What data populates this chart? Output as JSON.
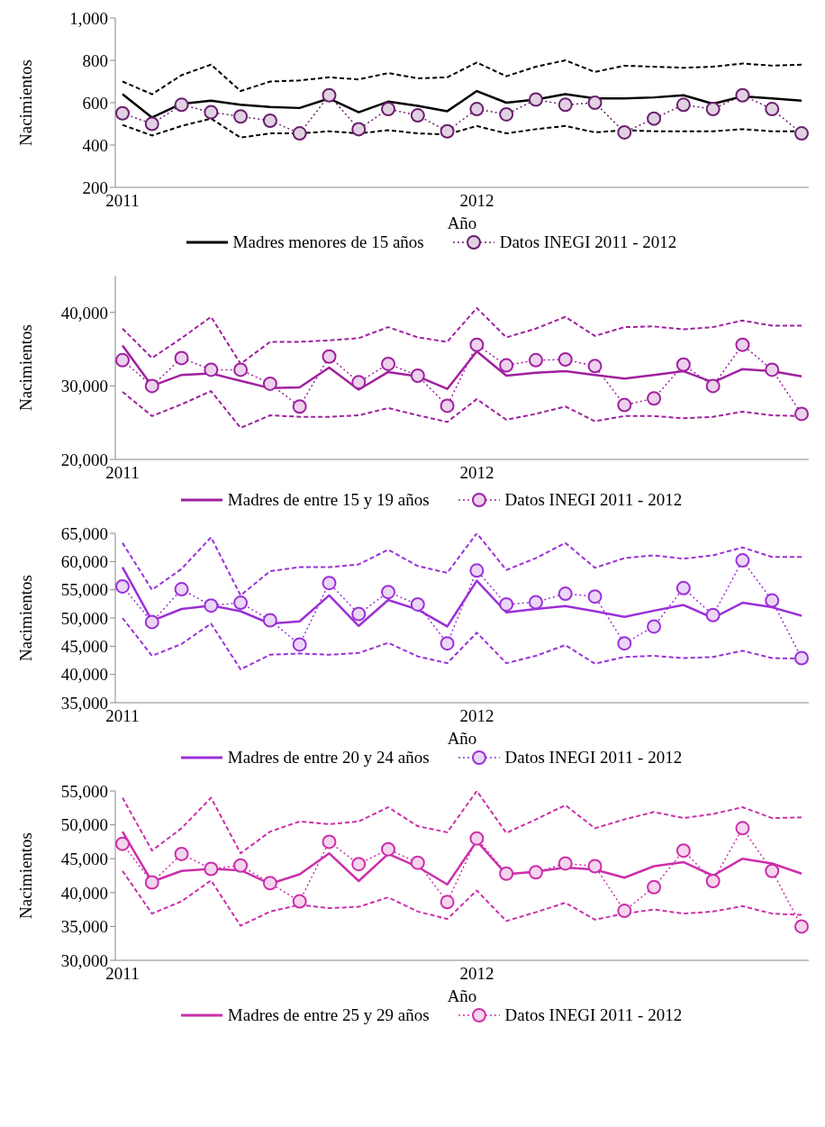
{
  "chart_data": [
    {
      "type": "line",
      "ylabel": "Nacimientos",
      "xlabel": "Año",
      "legend": "bottom",
      "categories": [
        "2011",
        null,
        null,
        null,
        null,
        null,
        null,
        null,
        null,
        null,
        null,
        null,
        "2012",
        null,
        null,
        null,
        null,
        null,
        null,
        null,
        null,
        null,
        null,
        null
      ],
      "ylim": [
        200,
        1000
      ],
      "yticks": [
        {
          "value": 200,
          "label": "200"
        },
        {
          "value": 400,
          "label": "400"
        },
        {
          "value": 600,
          "label": "600"
        },
        {
          "value": 800,
          "label": "800"
        },
        {
          "value": 1000,
          "label": "1,000"
        }
      ],
      "series": [
        {
          "name": "Madres menores de 15 años",
          "color": "#000000",
          "line_style": "solid",
          "marker": "none",
          "values": [
            640,
            530,
            595,
            610,
            590,
            580,
            575,
            620,
            555,
            605,
            585,
            560,
            655,
            600,
            615,
            640,
            620,
            620,
            625,
            635,
            595,
            630,
            620,
            610
          ]
        },
        {
          "color": "#000000",
          "line_style": "dashed",
          "marker": "none",
          "values": [
            700,
            640,
            730,
            780,
            655,
            700,
            705,
            720,
            710,
            740,
            715,
            720,
            790,
            725,
            770,
            800,
            745,
            775,
            770,
            765,
            770,
            785,
            775,
            780
          ]
        },
        {
          "color": "#000000",
          "line_style": "dashed",
          "marker": "none",
          "values": [
            495,
            445,
            490,
            525,
            435,
            455,
            455,
            465,
            455,
            470,
            455,
            450,
            490,
            455,
            475,
            490,
            460,
            470,
            465,
            465,
            465,
            475,
            465,
            465
          ]
        },
        {
          "name": "Datos INEGI 2011 - 2012",
          "color": "#6b1f6e",
          "line_style": "dotted",
          "marker": "circle",
          "values": [
            550,
            500,
            590,
            555,
            535,
            515,
            455,
            635,
            475,
            570,
            540,
            465,
            570,
            545,
            615,
            590,
            600,
            460,
            525,
            590,
            570,
            635,
            570,
            455
          ]
        }
      ]
    },
    {
      "type": "line",
      "ylabel": "Nacimientos",
      "legend": "bottom",
      "categories": [
        "2011",
        null,
        null,
        null,
        null,
        null,
        null,
        null,
        null,
        null,
        null,
        null,
        "2012",
        null,
        null,
        null,
        null,
        null,
        null,
        null,
        null,
        null,
        null,
        null
      ],
      "ylim": [
        20000,
        45000
      ],
      "yticks": [
        {
          "value": 20000,
          "label": "20,000"
        },
        {
          "value": 30000,
          "label": "30,000"
        },
        {
          "value": 40000,
          "label": "40,000"
        }
      ],
      "series": [
        {
          "name": "Madres de entre 15 y 19 años",
          "color": "#a020a0",
          "line_style": "solid",
          "marker": "none",
          "values": [
            35500,
            30000,
            31500,
            31700,
            30700,
            29700,
            29800,
            32500,
            29500,
            31900,
            31300,
            29600,
            34700,
            31400,
            31800,
            32000,
            31500,
            31000,
            31500,
            32000,
            30500,
            32300,
            32000,
            31300
          ]
        },
        {
          "color": "#a020a0",
          "line_style": "dashed",
          "marker": "none",
          "values": [
            37800,
            33800,
            36500,
            39400,
            33000,
            36000,
            36000,
            36200,
            36500,
            38000,
            36600,
            36000,
            40600,
            36600,
            37800,
            39400,
            36800,
            38000,
            38100,
            37700,
            38000,
            38900,
            38200,
            38200
          ]
        },
        {
          "color": "#a020a0",
          "line_style": "dashed",
          "marker": "none",
          "values": [
            29200,
            25900,
            27500,
            29300,
            24300,
            26000,
            25800,
            25800,
            26000,
            27000,
            26000,
            25100,
            28200,
            25400,
            26200,
            27200,
            25200,
            25900,
            25900,
            25600,
            25800,
            26500,
            26000,
            25900
          ]
        },
        {
          "name": "Datos INEGI 2011 - 2012",
          "color": "#a020a0",
          "line_style": "dotted",
          "marker": "circle",
          "values": [
            33500,
            30000,
            33800,
            32200,
            32200,
            30300,
            27200,
            34000,
            30500,
            33000,
            31400,
            27300,
            35600,
            32800,
            33500,
            33600,
            32700,
            27400,
            28300,
            32900,
            30000,
            35600,
            32200,
            26200
          ]
        }
      ]
    },
    {
      "type": "line",
      "ylabel": "Nacimientos",
      "xlabel": "Año",
      "legend": "bottom",
      "categories": [
        "2011",
        null,
        null,
        null,
        null,
        null,
        null,
        null,
        null,
        null,
        null,
        null,
        "2012",
        null,
        null,
        null,
        null,
        null,
        null,
        null,
        null,
        null,
        null,
        null
      ],
      "ylim": [
        35000,
        65000
      ],
      "yticks": [
        {
          "value": 35000,
          "label": "35,000"
        },
        {
          "value": 40000,
          "label": "40,000"
        },
        {
          "value": 45000,
          "label": "45,000"
        },
        {
          "value": 50000,
          "label": "50,000"
        },
        {
          "value": 55000,
          "label": "55,000"
        },
        {
          "value": 60000,
          "label": "60,000"
        },
        {
          "value": 65000,
          "label": "65,000"
        }
      ],
      "series": [
        {
          "name": "Madres de entre 20 y 24 años",
          "color": "#9b30d8",
          "line_style": "solid",
          "marker": "none",
          "values": [
            59000,
            49500,
            51600,
            52200,
            51200,
            49000,
            49400,
            54000,
            48600,
            53200,
            51500,
            48500,
            56600,
            51000,
            51600,
            52100,
            51200,
            50200,
            51300,
            52300,
            50000,
            52700,
            51900,
            50400
          ]
        },
        {
          "color": "#9b30d8",
          "line_style": "dashed",
          "marker": "none",
          "values": [
            63300,
            55000,
            58700,
            64300,
            54000,
            58300,
            59000,
            59000,
            59500,
            62100,
            59200,
            58000,
            65000,
            58500,
            60600,
            63300,
            58900,
            60600,
            61100,
            60500,
            61100,
            62500,
            60800,
            60800
          ]
        },
        {
          "color": "#9b30d8",
          "line_style": "dashed",
          "marker": "none",
          "values": [
            50000,
            43300,
            45400,
            49000,
            40900,
            43500,
            43700,
            43500,
            43800,
            45600,
            43200,
            42000,
            47400,
            42000,
            43300,
            45200,
            41900,
            43100,
            43300,
            42900,
            43100,
            44200,
            42900,
            42800
          ]
        },
        {
          "name": "Datos INEGI 2011 - 2012",
          "color": "#9b30d8",
          "line_style": "dotted",
          "marker": "circle",
          "values": [
            55600,
            49300,
            55100,
            52200,
            52700,
            49600,
            45300,
            56200,
            50700,
            54600,
            52400,
            45500,
            58400,
            52400,
            52800,
            54300,
            53800,
            45500,
            48500,
            55300,
            50500,
            60200,
            53100,
            42900
          ]
        }
      ]
    },
    {
      "type": "line",
      "ylabel": "Nacimientos",
      "xlabel": "Año",
      "legend": "bottom",
      "categories": [
        "2011",
        null,
        null,
        null,
        null,
        null,
        null,
        null,
        null,
        null,
        null,
        null,
        "2012",
        null,
        null,
        null,
        null,
        null,
        null,
        null,
        null,
        null,
        null,
        null
      ],
      "ylim": [
        30000,
        55000
      ],
      "yticks": [
        {
          "value": 30000,
          "label": "30,000"
        },
        {
          "value": 35000,
          "label": "35,000"
        },
        {
          "value": 40000,
          "label": "40,000"
        },
        {
          "value": 45000,
          "label": "45,000"
        },
        {
          "value": 50000,
          "label": "50,000"
        },
        {
          "value": 55000,
          "label": "55,000"
        }
      ],
      "series": [
        {
          "name": "Madres de entre 25 y 29 años",
          "color": "#cc2faa",
          "line_style": "solid",
          "marker": "none",
          "values": [
            49000,
            41600,
            43200,
            43500,
            43300,
            41300,
            42700,
            45800,
            41700,
            45700,
            43800,
            41200,
            47600,
            42700,
            43100,
            43700,
            43400,
            42200,
            43900,
            44500,
            42500,
            45000,
            44300,
            42800
          ]
        },
        {
          "color": "#cc2faa",
          "line_style": "dashed",
          "marker": "none",
          "values": [
            54000,
            46200,
            49500,
            54000,
            45800,
            49000,
            50500,
            50100,
            50500,
            52600,
            49800,
            48900,
            55000,
            48800,
            50800,
            52900,
            49500,
            50800,
            51900,
            51000,
            51600,
            52600,
            51000,
            51100
          ]
        },
        {
          "color": "#cc2faa",
          "line_style": "dashed",
          "marker": "none",
          "values": [
            43200,
            36900,
            38700,
            41800,
            35100,
            37200,
            38200,
            37700,
            37900,
            39300,
            37200,
            36100,
            40300,
            35800,
            37100,
            38500,
            36000,
            36900,
            37500,
            36900,
            37200,
            38000,
            36900,
            36700
          ]
        },
        {
          "name": "Datos INEGI 2011 - 2012",
          "color": "#cc2faa",
          "line_style": "dotted",
          "marker": "circle",
          "values": [
            47200,
            41500,
            45700,
            43500,
            44000,
            41400,
            38700,
            47500,
            44200,
            46400,
            44400,
            38600,
            48000,
            42800,
            43000,
            44300,
            43900,
            37300,
            40800,
            46200,
            41700,
            49500,
            43200,
            35000
          ]
        }
      ]
    }
  ]
}
